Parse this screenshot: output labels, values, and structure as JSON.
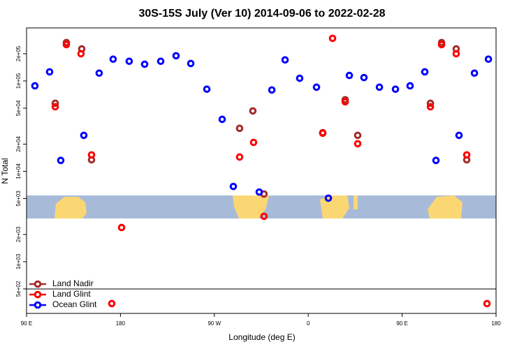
{
  "chart_data": {
    "type": "scatter",
    "title": "30S-15S July (Ver 10)   2014-09-06 to 2022-02-28",
    "x_label": "Longitude (deg E)",
    "y_label": "N Total",
    "log_y": true,
    "legend": "bottom-left",
    "xlim": [
      90,
      540
    ],
    "ylim": [
      268,
      386000
    ],
    "xticks": [
      {
        "value": 90,
        "label": "90 E"
      },
      180,
      {
        "value": 270,
        "label": "90 W"
      },
      {
        "value": 360,
        "label": "0"
      },
      {
        "value": 450,
        "label": "90 E"
      },
      {
        "value": 540,
        "label": "180"
      }
    ],
    "yticks": [
      {
        "value": 500,
        "label": "5e+02"
      },
      {
        "value": 1000,
        "label": "1e+03"
      },
      {
        "value": 2000,
        "label": "2e+03"
      },
      {
        "value": 5000,
        "label": "5e+03"
      },
      {
        "value": 10000,
        "label": "1e+04"
      },
      {
        "value": 20000,
        "label": "2e+04"
      },
      {
        "value": 50000,
        "label": "5e+04"
      },
      {
        "value": 100000,
        "label": "1e+05"
      },
      {
        "value": 200000,
        "label": "2e+05"
      }
    ],
    "series": [
      {
        "name": "Land Nadir",
        "color": "#a52a2a",
        "x": [
          117.5,
          128.2,
          142.9,
          152.3,
          294.2,
          306.9,
          317.6,
          373.9,
          395.4,
          407.4,
          477.1,
          487.8,
          501.8,
          511.9
        ],
        "values": [
          56600,
          266000,
          226000,
          13400,
          29900,
          46600,
          5610,
          26800,
          61900,
          25000,
          56600,
          266000,
          226000,
          13400
        ]
      },
      {
        "name": "Land Glint",
        "color": "#ff0000",
        "x": [
          117.5,
          128.2,
          142.2,
          152.3,
          171.7,
          181.1,
          294.2,
          307.6,
          317.6,
          373.9,
          383.3,
          395.4,
          407.4,
          477.1,
          487.8,
          501.8,
          511.9,
          531.3
        ],
        "values": [
          51800,
          252000,
          200000,
          15200,
          344,
          2390,
          14400,
          20900,
          3180,
          26400,
          296000,
          58700,
          20200,
          51800,
          252000,
          200000,
          15200,
          344
        ]
      },
      {
        "name": "Ocean Glint",
        "color": "#0000ff",
        "x": [
          98.0,
          112.1,
          122.8,
          144.9,
          159.6,
          173.0,
          188.4,
          203.2,
          218.6,
          233.3,
          247.4,
          262.8,
          277.5,
          288.2,
          313.0,
          325.1,
          337.8,
          351.8,
          367.9,
          379.3,
          399.4,
          413.4,
          428.2,
          443.6,
          457.6,
          471.7,
          482.4,
          504.5,
          519.3,
          532.7
        ],
        "values": [
          88300,
          126000,
          13200,
          25000,
          122000,
          174000,
          165000,
          153000,
          165000,
          190000,
          156000,
          81000,
          37600,
          6800,
          5900,
          79400,
          171000,
          107000,
          85300,
          5050,
          115000,
          109000,
          85300,
          81000,
          88300,
          126000,
          13200,
          25000,
          122000,
          174000
        ]
      }
    ]
  }
}
